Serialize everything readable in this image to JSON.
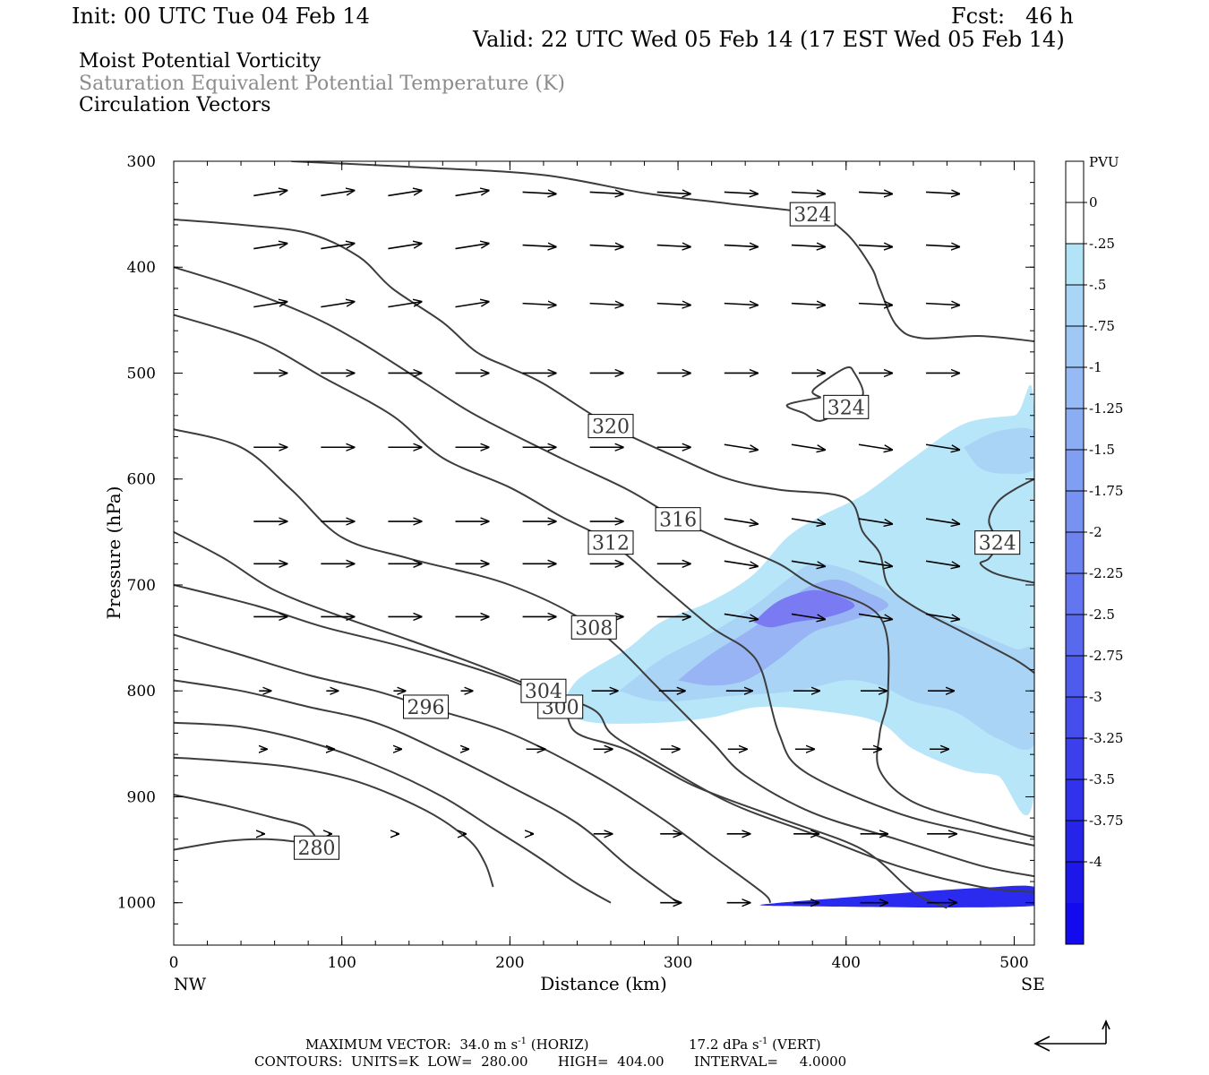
{
  "header": {
    "init": "Init: 00 UTC Tue 04 Feb 14",
    "fcst": "Fcst:   46 h",
    "valid": "Valid: 22 UTC Wed 05 Feb 14 (17 EST Wed 05 Feb 14)",
    "field1": "Moist Potential Vorticity",
    "field2": "Saturation Equivalent Potential Temperature (K)",
    "field3": "Circulation Vectors"
  },
  "axes": {
    "xlabel": "Distance (km)",
    "ylabel": "Pressure (hPa)",
    "left_end": "NW",
    "right_end": "SE"
  },
  "footer": {
    "max_vector_label": "MAXIMUM VECTOR:",
    "max_vector_horiz": "34.0 m s",
    "horiz_unit": "(HORIZ)",
    "max_vector_vert": "17.2 dPa s",
    "vert_unit": "(VERT)",
    "exponent": "-1",
    "contours": "CONTOURS:  UNITS=K  LOW=  280.00       HIGH=  404.00       INTERVAL=     4.0000"
  },
  "chart_data": {
    "type": "contour",
    "xlim": [
      0,
      512
    ],
    "ylim": [
      1040,
      300
    ],
    "x_ticks": [
      0,
      100,
      200,
      300,
      400,
      500
    ],
    "y_ticks": [
      300,
      400,
      500,
      600,
      700,
      800,
      900,
      1000
    ],
    "y_scale": "linear-pressure-reversed",
    "theta_e_contours": [
      {
        "level": 280,
        "label": "280",
        "points": [
          [
            0,
            950
          ],
          [
            30,
            942
          ],
          [
            55,
            940
          ],
          [
            80,
            944
          ],
          [
            85,
            948
          ],
          [
            85,
            940
          ],
          [
            78,
            928
          ],
          [
            60,
            920
          ],
          [
            30,
            908
          ],
          [
            0,
            898
          ]
        ]
      },
      {
        "level": 284,
        "points": [
          [
            0,
            863
          ],
          [
            30,
            866
          ],
          [
            70,
            872
          ],
          [
            110,
            886
          ],
          [
            150,
            913
          ],
          [
            175,
            940
          ],
          [
            185,
            962
          ],
          [
            190,
            985
          ]
        ]
      },
      {
        "level": 288,
        "points": [
          [
            0,
            830
          ],
          [
            40,
            834
          ],
          [
            80,
            848
          ],
          [
            120,
            870
          ],
          [
            160,
            900
          ],
          [
            190,
            930
          ],
          [
            215,
            955
          ],
          [
            240,
            982
          ],
          [
            260,
            1000
          ]
        ]
      },
      {
        "level": 292,
        "points": [
          [
            0,
            790
          ],
          [
            40,
            800
          ],
          [
            80,
            815
          ],
          [
            120,
            830
          ],
          [
            160,
            858
          ],
          [
            200,
            890
          ],
          [
            240,
            925
          ],
          [
            270,
            965
          ],
          [
            300,
            1000
          ]
        ]
      },
      {
        "level": 296,
        "label": "296",
        "points": [
          [
            0,
            747
          ],
          [
            40,
            766
          ],
          [
            80,
            785
          ],
          [
            120,
            800
          ],
          [
            150,
            815
          ],
          [
            200,
            840
          ],
          [
            250,
            880
          ],
          [
            290,
            920
          ],
          [
            320,
            955
          ],
          [
            350,
            990
          ],
          [
            355,
            1000
          ]
        ]
      },
      {
        "level": 300,
        "label": "300",
        "points": [
          [
            0,
            700
          ],
          [
            50,
            720
          ],
          [
            90,
            740
          ],
          [
            140,
            760
          ],
          [
            200,
            790
          ],
          [
            230,
            815
          ],
          [
            240,
            840
          ],
          [
            270,
            856
          ],
          [
            310,
            890
          ],
          [
            360,
            920
          ],
          [
            410,
            950
          ],
          [
            440,
            990
          ],
          [
            460,
            1005
          ]
        ]
      },
      {
        "level": 304,
        "label": "304",
        "points": [
          [
            0,
            650
          ],
          [
            30,
            675
          ],
          [
            60,
            705
          ],
          [
            100,
            730
          ],
          [
            140,
            752
          ],
          [
            180,
            775
          ],
          [
            220,
            800
          ],
          [
            250,
            818
          ],
          [
            260,
            840
          ],
          [
            280,
            860
          ],
          [
            330,
            905
          ],
          [
            380,
            935
          ],
          [
            430,
            965
          ],
          [
            480,
            985
          ],
          [
            512,
            990
          ]
        ]
      },
      {
        "level": 308,
        "label": "308",
        "points": [
          [
            0,
            553
          ],
          [
            40,
            570
          ],
          [
            70,
            610
          ],
          [
            100,
            655
          ],
          [
            140,
            675
          ],
          [
            200,
            700
          ],
          [
            250,
            740
          ],
          [
            290,
            800
          ],
          [
            320,
            848
          ],
          [
            340,
            880
          ],
          [
            380,
            915
          ],
          [
            430,
            940
          ],
          [
            480,
            965
          ],
          [
            512,
            975
          ]
        ]
      },
      {
        "level": 312,
        "label": "312",
        "points": [
          [
            0,
            445
          ],
          [
            50,
            470
          ],
          [
            90,
            505
          ],
          [
            130,
            540
          ],
          [
            160,
            580
          ],
          [
            200,
            608
          ],
          [
            230,
            635
          ],
          [
            260,
            660
          ],
          [
            290,
            700
          ],
          [
            320,
            740
          ],
          [
            340,
            760
          ],
          [
            350,
            782
          ],
          [
            360,
            840
          ],
          [
            375,
            876
          ],
          [
            430,
            915
          ],
          [
            480,
            935
          ],
          [
            512,
            946
          ]
        ]
      },
      {
        "level": 316,
        "label": "316",
        "points": [
          [
            0,
            400
          ],
          [
            40,
            420
          ],
          [
            80,
            445
          ],
          [
            110,
            470
          ],
          [
            150,
            510
          ],
          [
            180,
            540
          ],
          [
            230,
            580
          ],
          [
            270,
            610
          ],
          [
            300,
            638
          ],
          [
            330,
            660
          ],
          [
            360,
            680
          ],
          [
            380,
            700
          ],
          [
            420,
            730
          ],
          [
            425,
            800
          ],
          [
            420,
            840
          ],
          [
            420,
            875
          ],
          [
            440,
            905
          ],
          [
            480,
            925
          ],
          [
            512,
            938
          ]
        ]
      },
      {
        "level": 320,
        "label": "320",
        "points": [
          [
            0,
            355
          ],
          [
            40,
            360
          ],
          [
            80,
            368
          ],
          [
            110,
            390
          ],
          [
            130,
            420
          ],
          [
            160,
            452
          ],
          [
            180,
            480
          ],
          [
            200,
            495
          ],
          [
            220,
            510
          ],
          [
            260,
            550
          ],
          [
            300,
            580
          ],
          [
            330,
            600
          ],
          [
            360,
            610
          ],
          [
            400,
            618
          ],
          [
            410,
            650
          ],
          [
            420,
            670
          ],
          [
            425,
            700
          ],
          [
            440,
            720
          ],
          [
            470,
            745
          ],
          [
            500,
            770
          ],
          [
            512,
            783
          ]
        ]
      },
      {
        "level": 324,
        "label": "324",
        "points": [
          [
            70,
            300
          ],
          [
            150,
            306
          ],
          [
            220,
            313
          ],
          [
            280,
            330
          ],
          [
            330,
            340
          ],
          [
            380,
            350
          ],
          [
            400,
            368
          ],
          [
            415,
            400
          ],
          [
            420,
            420
          ],
          [
            430,
            455
          ],
          [
            445,
            467
          ],
          [
            480,
            465
          ],
          [
            512,
            470
          ]
        ]
      },
      {
        "level": 324,
        "label": "324",
        "points": [
          [
            385,
            523
          ],
          [
            365,
            530
          ],
          [
            375,
            538
          ],
          [
            385,
            545
          ],
          [
            400,
            532
          ],
          [
            410,
            520
          ],
          [
            405,
            500
          ],
          [
            400,
            495
          ],
          [
            385,
            510
          ],
          [
            380,
            518
          ],
          [
            385,
            523
          ]
        ]
      },
      {
        "level": 324,
        "label": "324",
        "points": [
          [
            512,
            600
          ],
          [
            500,
            610
          ],
          [
            490,
            622
          ],
          [
            485,
            640
          ],
          [
            490,
            660
          ],
          [
            485,
            675
          ],
          [
            480,
            680
          ],
          [
            490,
            690
          ],
          [
            512,
            698
          ]
        ]
      }
    ],
    "mpv_shading": {
      "unit": "PVU",
      "colorbar": {
        "labels": [
          "0",
          "-.25",
          "-.5",
          "-.75",
          "-1",
          "-1.25",
          "-1.5",
          "-1.75",
          "-2",
          "-2.25",
          "-2.5",
          "-2.75",
          "-3",
          "-3.25",
          "-3.5",
          "-3.75",
          "-4"
        ],
        "colors": [
          "#ffffff",
          "#ffffff",
          "#b3e3f7",
          "#a9d6f6",
          "#9fc8f5",
          "#95baf4",
          "#8badf3",
          "#819ff2",
          "#7792f1",
          "#6d84f0",
          "#6376ef",
          "#5969ee",
          "#4f5bed",
          "#454ded",
          "#3b40ec",
          "#3132eb",
          "#2724ea",
          "#1d17e9",
          "#130aee"
        ]
      },
      "regions": [
        {
          "pvu": -0.25,
          "points": [
            [
              230,
              820
            ],
            [
              240,
              790
            ],
            [
              270,
              760
            ],
            [
              290,
              735
            ],
            [
              320,
              715
            ],
            [
              345,
              690
            ],
            [
              365,
              655
            ],
            [
              385,
              635
            ],
            [
              410,
              615
            ],
            [
              440,
              580
            ],
            [
              470,
              548
            ],
            [
              500,
              540
            ],
            [
              512,
              537
            ],
            [
              512,
              895
            ],
            [
              490,
              880
            ],
            [
              470,
              875
            ],
            [
              440,
              855
            ],
            [
              420,
              830
            ],
            [
              390,
              820
            ],
            [
              350,
              815
            ],
            [
              320,
              825
            ],
            [
              290,
              830
            ],
            [
              250,
              830
            ]
          ]
        },
        {
          "pvu": -0.5,
          "points": [
            [
              265,
              800
            ],
            [
              290,
              770
            ],
            [
              320,
              745
            ],
            [
              345,
              720
            ],
            [
              365,
              695
            ],
            [
              380,
              680
            ],
            [
              400,
              685
            ],
            [
              420,
              700
            ],
            [
              440,
              720
            ],
            [
              470,
              740
            ],
            [
              500,
              760
            ],
            [
              512,
              765
            ],
            [
              512,
              850
            ],
            [
              490,
              845
            ],
            [
              465,
              820
            ],
            [
              440,
              810
            ],
            [
              420,
              795
            ],
            [
              400,
              790
            ],
            [
              370,
              800
            ],
            [
              330,
              805
            ],
            [
              290,
              810
            ]
          ]
        },
        {
          "pvu": -1.25,
          "points": [
            [
              300,
              790
            ],
            [
              320,
              765
            ],
            [
              345,
              740
            ],
            [
              365,
              715
            ],
            [
              380,
              700
            ],
            [
              395,
              695
            ],
            [
              410,
              705
            ],
            [
              425,
              720
            ],
            [
              400,
              735
            ],
            [
              380,
              745
            ],
            [
              360,
              770
            ],
            [
              340,
              790
            ],
            [
              320,
              795
            ]
          ]
        },
        {
          "pvu": -2.0,
          "points": [
            [
              345,
              735
            ],
            [
              360,
              715
            ],
            [
              380,
              705
            ],
            [
              395,
              710
            ],
            [
              405,
              720
            ],
            [
              390,
              730
            ],
            [
              370,
              735
            ],
            [
              355,
              740
            ]
          ]
        },
        {
          "pvu": -0.5,
          "points": [
            [
              470,
              570
            ],
            [
              490,
              555
            ],
            [
              512,
              555
            ],
            [
              512,
              590
            ],
            [
              495,
              595
            ],
            [
              480,
              590
            ]
          ]
        },
        {
          "pvu": -3.75,
          "points": [
            [
              360,
              1000
            ],
            [
              400,
              995
            ],
            [
              440,
              990
            ],
            [
              480,
              986
            ],
            [
              512,
              985
            ],
            [
              512,
              1003
            ],
            [
              360,
              1003
            ]
          ]
        }
      ]
    },
    "max_vector": {
      "horizontal_m_s": 34.0,
      "vertical_dPa_s": 17.2
    },
    "contour_stats": {
      "units": "K",
      "low": 280.0,
      "high": 404.0,
      "interval": 4.0
    }
  }
}
